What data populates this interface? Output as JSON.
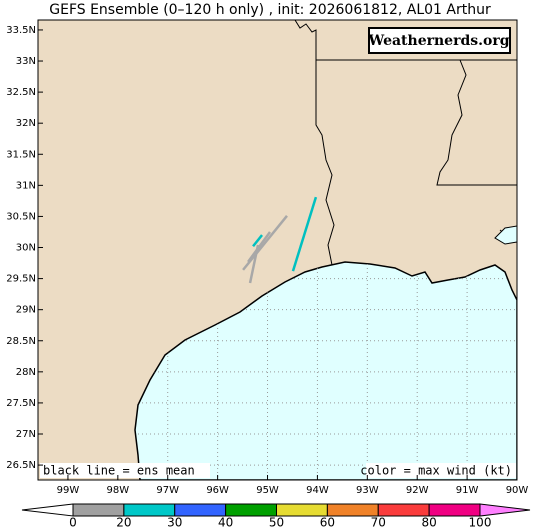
{
  "title": "GEFS Ensemble (0–120 h only) , init: 2026061812, AL01 Arthur",
  "watermark": "Weathernerds.org",
  "map": {
    "lonlim": [
      -99.6,
      -90
    ],
    "latlim": [
      26.26,
      33.66
    ],
    "lon_ticks": [
      {
        "value": -99,
        "label": "99W"
      },
      {
        "value": -98,
        "label": "98W"
      },
      {
        "value": -97,
        "label": "97W"
      },
      {
        "value": -96,
        "label": "96W"
      },
      {
        "value": -95,
        "label": "95W"
      },
      {
        "value": -94,
        "label": "94W"
      },
      {
        "value": -93,
        "label": "93W"
      },
      {
        "value": -92,
        "label": "92W"
      },
      {
        "value": -91,
        "label": "91W"
      },
      {
        "value": -90,
        "label": "90W"
      }
    ],
    "lat_ticks": [
      {
        "value": 26.5,
        "label": "26.5N"
      },
      {
        "value": 27,
        "label": "27N"
      },
      {
        "value": 27.5,
        "label": "27.5N"
      },
      {
        "value": 28,
        "label": "28N"
      },
      {
        "value": 28.5,
        "label": "28.5N"
      },
      {
        "value": 29,
        "label": "29N"
      },
      {
        "value": 29.5,
        "label": "29.5N"
      },
      {
        "value": 30,
        "label": "30N"
      },
      {
        "value": 30.5,
        "label": "30.5N"
      },
      {
        "value": 31,
        "label": "31N"
      },
      {
        "value": 31.5,
        "label": "31.5N"
      },
      {
        "value": 32,
        "label": "32N"
      },
      {
        "value": 32.5,
        "label": "32.5N"
      },
      {
        "value": 33,
        "label": "33N"
      },
      {
        "value": 33.5,
        "label": "33.5N"
      }
    ],
    "grid": true
  },
  "tracks": [
    {
      "color": "#00c0c0",
      "lon": [
        -94.03,
        -94.49
      ],
      "lat": [
        30.81,
        29.62
      ]
    },
    {
      "color": "#00c0c0",
      "lon": [
        -95.11,
        -95.29
      ],
      "lat": [
        30.2,
        30.02
      ]
    },
    {
      "color": "#a8a8a8",
      "lon": [
        -94.61,
        -95.49
      ],
      "lat": [
        30.51,
        29.64
      ]
    },
    {
      "color": "#a8a8a8",
      "lon": [
        -94.95,
        -95.39
      ],
      "lat": [
        30.25,
        29.77
      ]
    },
    {
      "color": "#a8a8a8",
      "lon": [
        -95.19,
        -95.35
      ],
      "lat": [
        30.04,
        29.43
      ]
    }
  ],
  "legend_left": "black line = ens mean",
  "legend_right": "color = max wind (kt)",
  "colorbar": {
    "bounds": [
      0,
      20,
      30,
      40,
      50,
      60,
      70,
      80,
      100
    ],
    "colors": [
      "#a0a0a0",
      "#00c8c8",
      "#3264ff",
      "#00a000",
      "#e6dc32",
      "#f08228",
      "#fa3c3c",
      "#f00082"
    ],
    "under_color": "#ffffff",
    "over_color": "#ff80ff"
  }
}
